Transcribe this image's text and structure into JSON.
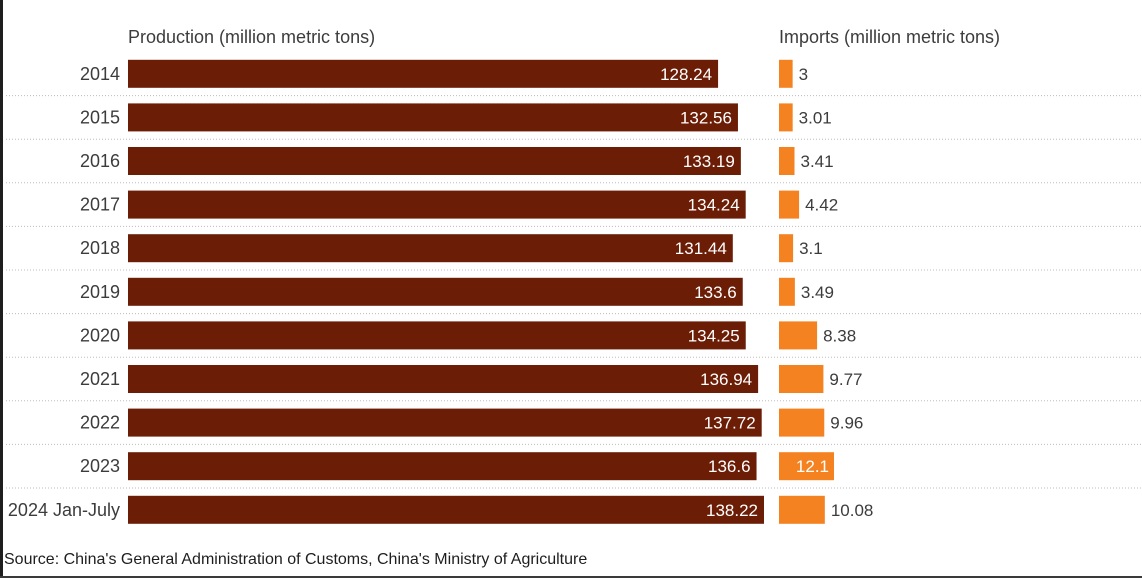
{
  "chart_data": {
    "type": "bar",
    "orientation": "horizontal",
    "categories": [
      "2014",
      "2015",
      "2016",
      "2017",
      "2018",
      "2019",
      "2020",
      "2021",
      "2022",
      "2023",
      "2024 Jan-July"
    ],
    "series": [
      {
        "name": "Production (million metric tons)",
        "values": [
          128.24,
          132.56,
          133.19,
          134.24,
          131.44,
          133.6,
          134.25,
          136.94,
          137.72,
          136.6,
          138.22
        ],
        "labels": [
          "128.24",
          "132.56",
          "133.19",
          "134.24",
          "131.44",
          "133.6",
          "134.25",
          "136.94",
          "137.72",
          "136.6",
          "138.22"
        ],
        "color": "#6b1d06"
      },
      {
        "name": "Imports (million metric tons)",
        "values": [
          3,
          3.01,
          3.41,
          4.42,
          3.1,
          3.49,
          8.38,
          9.77,
          9.96,
          12.1,
          10.08
        ],
        "labels": [
          "3",
          "3.01",
          "3.41",
          "4.42",
          "3.1",
          "3.49",
          "8.38",
          "9.77",
          "9.96",
          "12.1",
          "10.08"
        ],
        "color": "#f58220"
      }
    ],
    "grid": "dotted row separators",
    "source": "Source: China's General Administration of Customs, China's Ministry of Agriculture"
  }
}
